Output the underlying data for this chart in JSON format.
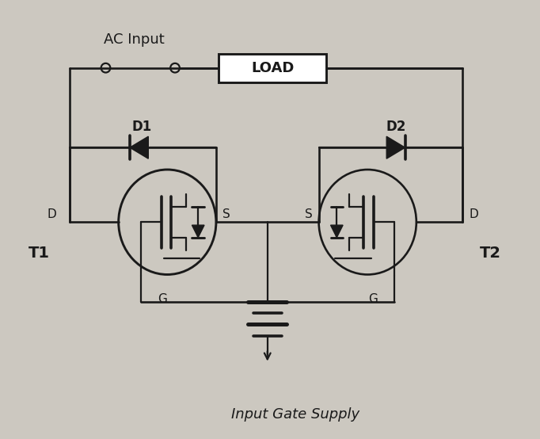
{
  "bg_color": "#ccc8c0",
  "line_color": "#1a1a1a",
  "lw": 1.6,
  "figsize": [
    6.82,
    5.54
  ],
  "dpi": 100,
  "ac_input_label": "AC Input",
  "load_label": "LOAD",
  "d1_label": "D1",
  "d2_label": "D2",
  "t1_label": "T1",
  "t2_label": "T2",
  "gate_supply_label": "Input Gate Supply",
  "font_family": "DejaVu Sans"
}
